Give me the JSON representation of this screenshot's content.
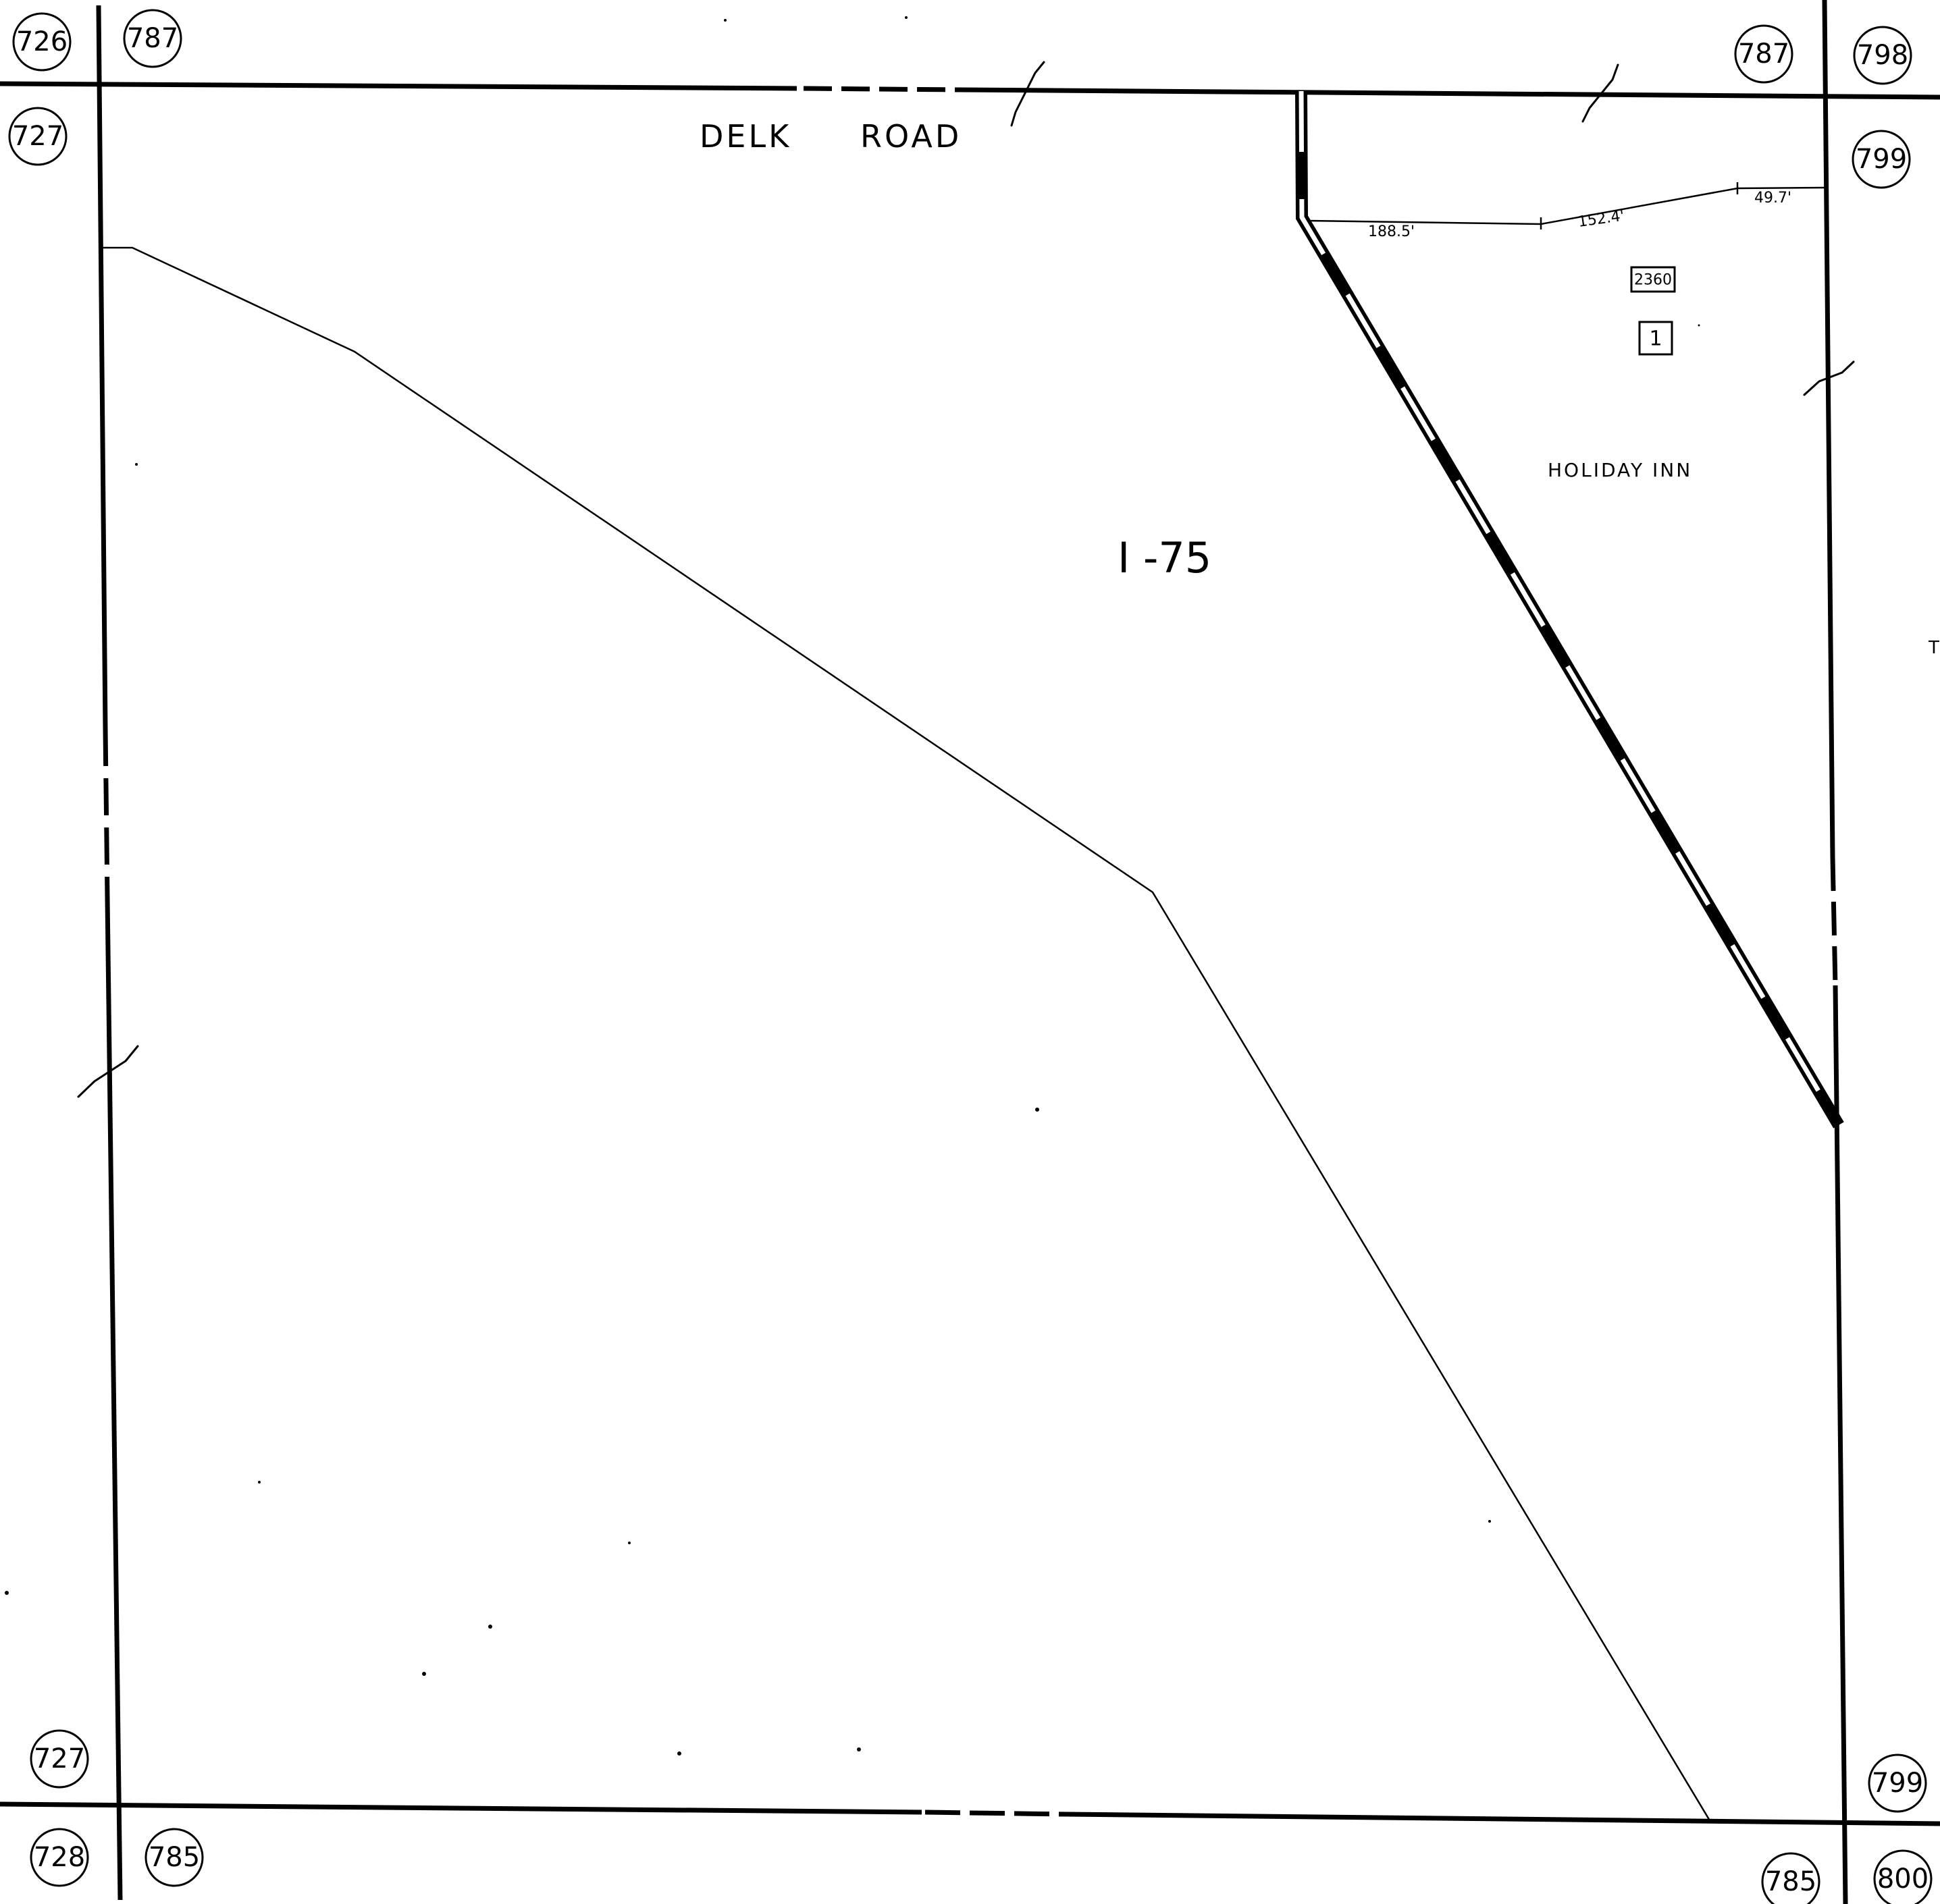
{
  "road_labels": {
    "delk_word": "DELK",
    "road_word": "ROAD",
    "interstate": "I -75"
  },
  "parcel": {
    "name": "HOLIDAY INN",
    "address_number": "2360",
    "parcel_number": "1",
    "dimensions": {
      "segment_a": "188.5'",
      "segment_b": "152.4'",
      "segment_c": "49.7'"
    }
  },
  "edge_text": "T",
  "sheet_refs": {
    "top_left_outer": "726",
    "top_left_inner": "787",
    "top_right_inner": "787",
    "top_right_outer": "798",
    "left_upper": "727",
    "right_upper": "799",
    "left_lower": "727",
    "right_lower": "799",
    "bottom_left_outer": "728",
    "bottom_left_inner": "785",
    "bottom_right_inner": "785",
    "bottom_right_outer": "800"
  },
  "colors": {
    "ink": "#000000",
    "paper": "#ffffff"
  }
}
